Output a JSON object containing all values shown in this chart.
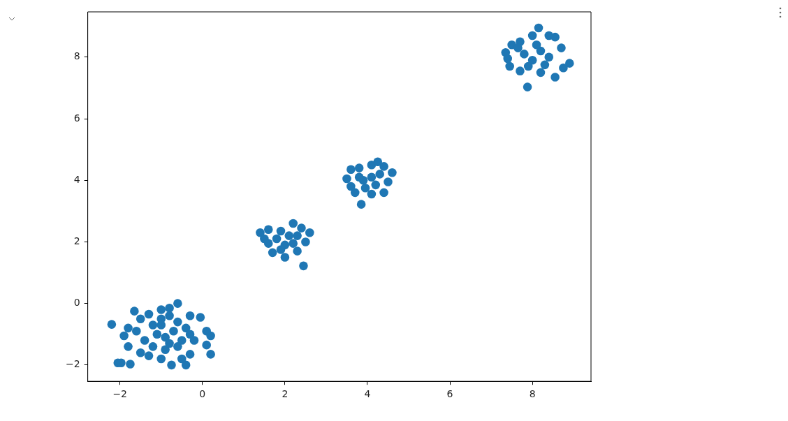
{
  "chart_data": {
    "type": "scatter",
    "xlim": [
      -2.78,
      9.42
    ],
    "ylim": [
      -2.53,
      9.47
    ],
    "xticks": [
      {
        "value": -2,
        "label": "−2"
      },
      0,
      2,
      4,
      6,
      8
    ],
    "yticks": [
      {
        "value": -2,
        "label": "−2"
      },
      0,
      2,
      4,
      6,
      8
    ],
    "grid": false,
    "legend": false,
    "marker": "circle",
    "series": [
      {
        "color": "#1f77b4",
        "x": [
          -2.2,
          -2.05,
          -1.97,
          -1.75,
          -1.65,
          -1.8,
          -1.9,
          -1.8,
          -1.5,
          -1.3,
          -1.0,
          -0.75,
          -0.4,
          -0.5,
          -0.3,
          0.2,
          0.1,
          0.2,
          0.1,
          -0.05,
          -0.3,
          -0.6,
          -0.8,
          -1.0,
          -1.3,
          -1.5,
          -1.6,
          -1.4,
          -1.2,
          -1.0,
          -0.8,
          -0.6,
          -0.4,
          -1.1,
          -0.9,
          -0.7,
          -0.5,
          -0.3,
          -1.2,
          -0.9,
          -0.6,
          -1.0,
          -0.8,
          -0.2,
          1.4,
          1.6,
          1.9,
          2.2,
          2.4,
          2.6,
          2.5,
          2.3,
          2.45,
          2.0,
          1.7,
          1.6,
          1.5,
          1.8,
          2.0,
          2.1,
          2.2,
          1.9,
          2.3,
          3.5,
          3.6,
          3.8,
          4.1,
          4.25,
          4.4,
          4.6,
          4.5,
          4.4,
          4.1,
          3.85,
          3.7,
          3.6,
          3.9,
          4.1,
          4.2,
          3.95,
          4.3,
          3.8,
          7.35,
          7.5,
          7.7,
          8.0,
          8.15,
          8.4,
          8.55,
          8.7,
          8.9,
          8.75,
          8.55,
          8.2,
          7.88,
          7.7,
          7.45,
          7.4,
          7.8,
          8.0,
          8.2,
          8.4,
          7.9,
          8.1,
          8.3,
          7.65
        ],
        "values": [
          -0.68,
          -1.93,
          -1.93,
          -1.97,
          -0.25,
          -0.8,
          -1.05,
          -1.4,
          -1.6,
          -1.7,
          -1.8,
          -2.0,
          -2.0,
          -1.8,
          -1.65,
          -1.65,
          -1.35,
          -1.05,
          -0.9,
          -0.45,
          -0.4,
          0.0,
          -0.15,
          -0.2,
          -0.35,
          -0.5,
          -0.9,
          -1.2,
          -0.7,
          -0.5,
          -0.4,
          -0.6,
          -0.8,
          -1.0,
          -1.1,
          -0.9,
          -1.2,
          -1.0,
          -1.4,
          -1.5,
          -1.4,
          -0.7,
          -1.3,
          -1.2,
          2.3,
          2.4,
          2.35,
          2.6,
          2.45,
          2.3,
          2.0,
          1.7,
          1.22,
          1.5,
          1.65,
          1.95,
          2.1,
          2.1,
          1.9,
          2.2,
          1.95,
          1.75,
          2.2,
          4.05,
          4.35,
          4.4,
          4.5,
          4.6,
          4.45,
          4.25,
          3.95,
          3.6,
          3.55,
          3.22,
          3.6,
          3.8,
          4.0,
          4.1,
          3.85,
          3.75,
          4.2,
          4.1,
          8.15,
          8.4,
          8.5,
          8.7,
          8.95,
          8.7,
          8.65,
          8.3,
          7.8,
          7.65,
          7.35,
          7.5,
          7.03,
          7.55,
          7.7,
          7.95,
          8.1,
          7.9,
          8.2,
          8.0,
          7.7,
          8.4,
          7.75,
          8.3
        ]
      }
    ]
  }
}
